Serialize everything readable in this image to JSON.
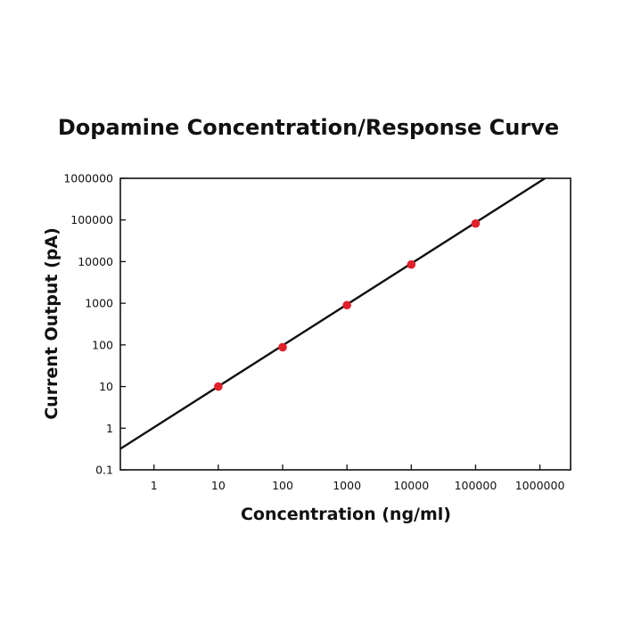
{
  "chart_data": {
    "type": "scatter",
    "title": "Dopamine Concentration/Response Curve",
    "xlabel": "Concentration (ng/ml)",
    "ylabel": "Current Output (pA)",
    "x_scale": "log",
    "y_scale": "log",
    "xlim": [
      0.3,
      3000000
    ],
    "ylim": [
      0.1,
      1000000
    ],
    "x_ticks": [
      1,
      10,
      100,
      1000,
      10000,
      100000,
      1000000
    ],
    "x_tick_labels": [
      "1",
      "10",
      "100",
      "1000",
      "10000",
      "100000",
      "1000000"
    ],
    "y_ticks": [
      0.1,
      1,
      10,
      100,
      1000,
      10000,
      100000,
      1000000
    ],
    "y_tick_labels": [
      "0.1",
      "1",
      "10",
      "100",
      "1000",
      "10000",
      "100000",
      "1000000"
    ],
    "grid": false,
    "series": [
      {
        "type": "scatter",
        "color": "#e0202a",
        "x": [
          10,
          100,
          1000,
          10000,
          100000
        ],
        "y": [
          10,
          88,
          900,
          8500,
          82000
        ]
      },
      {
        "type": "line",
        "color": "#111111",
        "x": [
          0.3,
          1200000
        ],
        "y": [
          0.32,
          1000000
        ]
      }
    ]
  }
}
